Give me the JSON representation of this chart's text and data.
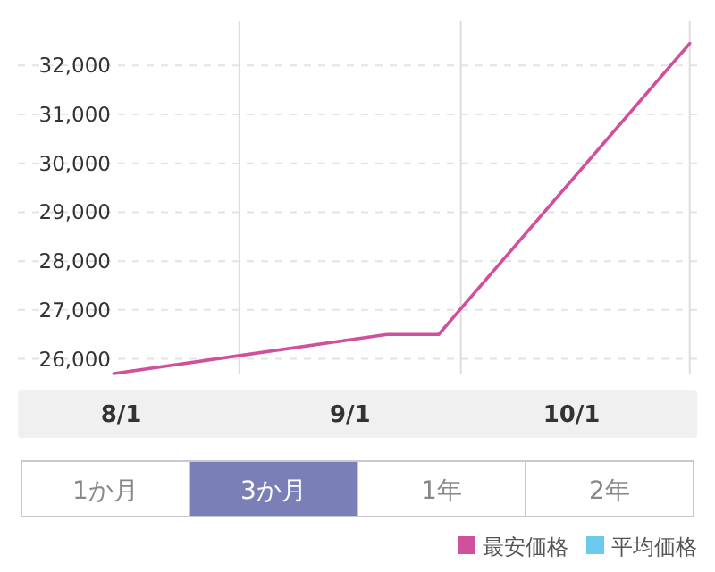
{
  "chart_data": {
    "type": "line",
    "series": [
      {
        "name": "最安価格",
        "color": "#d0509c",
        "x": [
          "--08-15",
          "--09-21",
          "--09-28",
          "--11-01"
        ],
        "values": [
          25700,
          26500,
          26500,
          32450
        ]
      },
      {
        "name": "平均価格",
        "color": "#6ccaee"
      }
    ],
    "xlim": [
      "--08-02",
      "--11-02"
    ],
    "xticks": [
      {
        "value": "--08-16",
        "label": "8/1"
      },
      {
        "value": "--09-16",
        "label": "9/1"
      },
      {
        "value": "--10-16",
        "label": "10/1"
      }
    ],
    "ylim": [
      25700,
      32900
    ],
    "yticks": [
      {
        "value": 26000,
        "label": "26,000"
      },
      {
        "value": 27000,
        "label": "27,000"
      },
      {
        "value": 28000,
        "label": "28,000"
      },
      {
        "value": 29000,
        "label": "29,000"
      },
      {
        "value": 30000,
        "label": "30,000"
      },
      {
        "value": 31000,
        "label": "31,000"
      },
      {
        "value": 32000,
        "label": "32,000"
      }
    ],
    "grid": "y",
    "ref_lines": [
      {
        "axis": "x",
        "value": "--09-01",
        "color": "#dddddd"
      },
      {
        "axis": "x",
        "value": "--10-01",
        "color": "#dddddd"
      },
      {
        "axis": "x",
        "value": "--11-01",
        "color": "#dddddd"
      }
    ],
    "legend": "bottom right",
    "marker": "none",
    "line_style": "solid",
    "annotations": [
      "1か月",
      "3か月",
      "1年",
      "2年"
    ]
  }
}
